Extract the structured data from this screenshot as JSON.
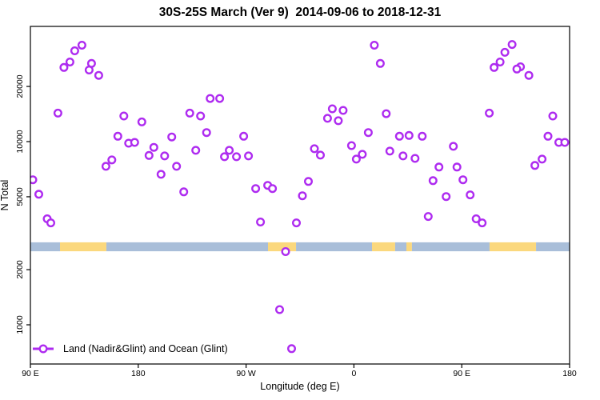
{
  "title": "30S-25S March (Ver 9)  2014-09-06 to 2018-12-31",
  "x_axis": {
    "label": "Longitude (deg E)",
    "ticks": [
      {
        "lon": 90,
        "label": "90 E"
      },
      {
        "lon": 180,
        "label": "180"
      },
      {
        "lon": 270,
        "label": "90 W"
      },
      {
        "lon": 360,
        "label": "0"
      },
      {
        "lon": 450,
        "label": "90 E"
      },
      {
        "lon": 540,
        "label": "180"
      }
    ]
  },
  "y_axis": {
    "label": "N Total",
    "ticks": [
      {
        "value": 1000,
        "label": "1000"
      },
      {
        "value": 2000,
        "label": "2000"
      },
      {
        "value": 5000,
        "label": "5000"
      },
      {
        "value": 10000,
        "label": "10000"
      },
      {
        "value": 20000,
        "label": "20000"
      }
    ]
  },
  "legend": {
    "label": "Land (Nadir&Glint) and Ocean (Glint)"
  },
  "colors": {
    "point": "#AE2BF0",
    "point_fill": "#ffffff",
    "land": "#FBD87D",
    "ocean": "#A9BED9",
    "axis": "#000000"
  },
  "chart_data": {
    "type": "scatter",
    "title": "30S-25S March (Ver 9)  2014-09-06 to 2018-12-31",
    "xlabel": "Longitude (deg E)",
    "ylabel": "N Total",
    "x_mode": "longitude, continuous degrees east starting at 90E (90..540)",
    "y_scale": "log10",
    "xlim": [
      90,
      540
    ],
    "ylim": [
      611,
      42500
    ],
    "marker": "open-circle",
    "series_name": "Land (Nadir&Glint) and Ocean (Glint)",
    "points": [
      [
        127,
        31300
      ],
      [
        133,
        33600
      ],
      [
        123,
        27200
      ],
      [
        118,
        25400
      ],
      [
        141,
        26700
      ],
      [
        139,
        24600
      ],
      [
        147,
        23000
      ],
      [
        113,
        14300
      ],
      [
        168,
        13800
      ],
      [
        183,
        12800
      ],
      [
        223,
        14300
      ],
      [
        232,
        13800
      ],
      [
        240,
        17200
      ],
      [
        237,
        11200
      ],
      [
        163,
        10700
      ],
      [
        172,
        9800
      ],
      [
        177,
        9900
      ],
      [
        189,
        8400
      ],
      [
        193,
        9300
      ],
      [
        202,
        8350
      ],
      [
        208,
        10600
      ],
      [
        228,
        8960
      ],
      [
        158,
        7940
      ],
      [
        153,
        7330
      ],
      [
        212,
        7330
      ],
      [
        199,
        6630
      ],
      [
        218,
        5320
      ],
      [
        92,
        6190
      ],
      [
        97,
        5160
      ],
      [
        248,
        17200
      ],
      [
        377,
        33600
      ],
      [
        382,
        26700
      ],
      [
        342,
        15100
      ],
      [
        351,
        14800
      ],
      [
        338,
        13400
      ],
      [
        347,
        13000
      ],
      [
        387,
        14200
      ],
      [
        268,
        10700
      ],
      [
        256,
        8960
      ],
      [
        252,
        8270
      ],
      [
        262,
        8270
      ],
      [
        272,
        8350
      ],
      [
        372,
        11200
      ],
      [
        327,
        9140
      ],
      [
        332,
        8440
      ],
      [
        358,
        9510
      ],
      [
        367,
        8520
      ],
      [
        362,
        8020
      ],
      [
        278,
        5540
      ],
      [
        288,
        5770
      ],
      [
        292,
        5540
      ],
      [
        317,
        5060
      ],
      [
        322,
        6060
      ],
      [
        492,
        33900
      ],
      [
        486,
        30700
      ],
      [
        482,
        27200
      ],
      [
        477,
        25400
      ],
      [
        499,
        25600
      ],
      [
        496,
        24900
      ],
      [
        506,
        23000
      ],
      [
        473,
        14300
      ],
      [
        526,
        13800
      ],
      [
        398,
        10700
      ],
      [
        406,
        10800
      ],
      [
        417,
        10700
      ],
      [
        443,
        9420
      ],
      [
        390,
        8870
      ],
      [
        401,
        8350
      ],
      [
        411,
        8100
      ],
      [
        431,
        7260
      ],
      [
        446,
        7260
      ],
      [
        426,
        6120
      ],
      [
        451,
        6190
      ],
      [
        522,
        10700
      ],
      [
        531,
        9900
      ],
      [
        536,
        9900
      ],
      [
        517,
        8020
      ],
      [
        511,
        7410
      ],
      [
        437,
        5010
      ],
      [
        457,
        5120
      ],
      [
        104,
        3790
      ],
      [
        107,
        3600
      ],
      [
        282,
        3640
      ],
      [
        312,
        3600
      ],
      [
        303,
        2510
      ],
      [
        298,
        1210
      ],
      [
        308,
        741
      ],
      [
        422,
        3900
      ],
      [
        462,
        3790
      ],
      [
        467,
        3600
      ]
    ],
    "map_strip": {
      "description": "land/ocean strip along longitude",
      "value_range": [
        2520,
        2820
      ],
      "segments": [
        {
          "from": 90,
          "to": 114.7,
          "type": "ocean"
        },
        {
          "from": 114.7,
          "to": 153.4,
          "type": "land"
        },
        {
          "from": 153.4,
          "to": 288.3,
          "type": "ocean"
        },
        {
          "from": 288.3,
          "to": 311.7,
          "type": "land"
        },
        {
          "from": 311.7,
          "to": 375.1,
          "type": "ocean"
        },
        {
          "from": 375.1,
          "to": 394.4,
          "type": "land"
        },
        {
          "from": 394.4,
          "to": 403.8,
          "type": "ocean"
        },
        {
          "from": 403.8,
          "to": 408.4,
          "type": "land"
        },
        {
          "from": 408.4,
          "to": 473.2,
          "type": "ocean"
        },
        {
          "from": 473.2,
          "to": 512,
          "type": "land"
        },
        {
          "from": 512,
          "to": 540,
          "type": "ocean"
        }
      ]
    }
  }
}
